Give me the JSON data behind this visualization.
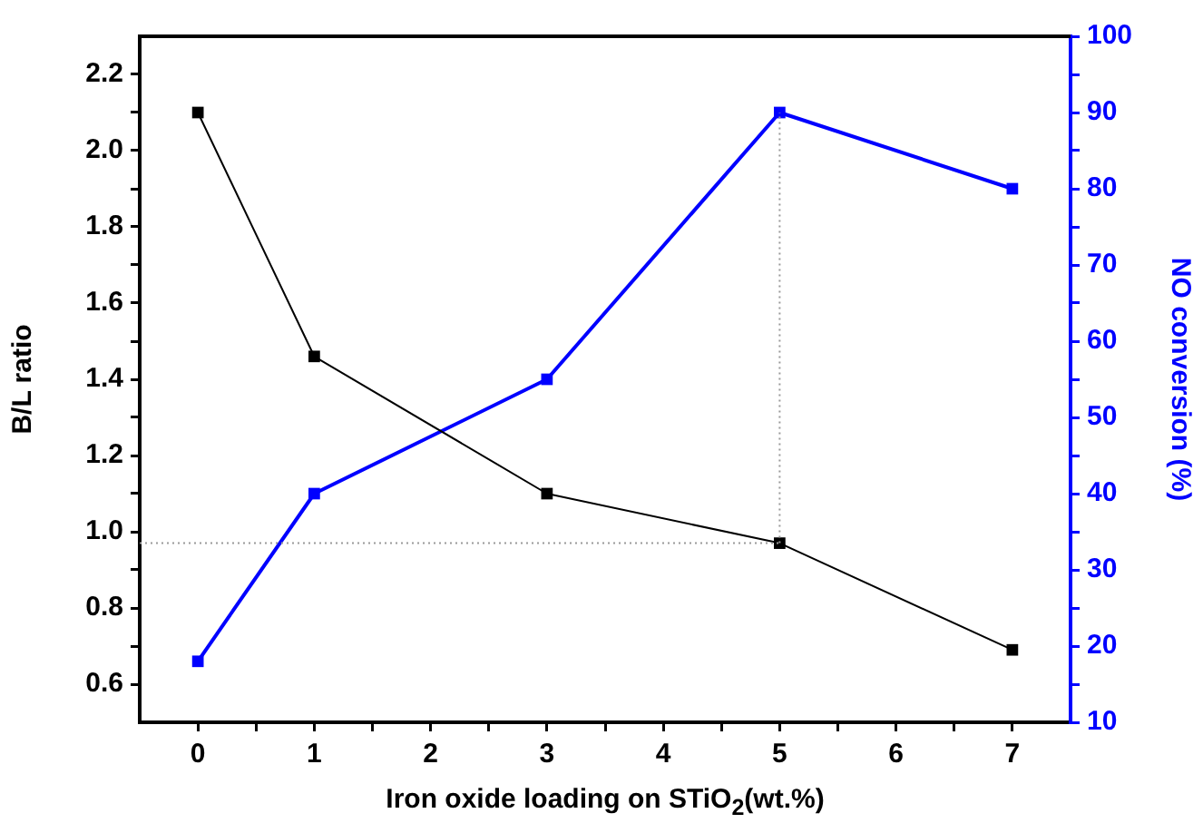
{
  "chart_data": {
    "type": "line",
    "xlabel": "Iron oxide loading on STiO$_{2}$(wt.%)",
    "ylabel": "B/L ratio",
    "y2label": "NO conversion (%)",
    "x": [
      0,
      1,
      3,
      5,
      7
    ],
    "xlim": [
      -0.5,
      7.5
    ],
    "xticks": [
      0,
      {
        "value": 0.5,
        "label": null
      },
      1,
      {
        "value": 1.5,
        "label": null
      },
      2,
      {
        "value": 2.5,
        "label": null
      },
      3,
      {
        "value": 3.5,
        "label": null
      },
      4,
      {
        "value": 4.5,
        "label": null
      },
      5,
      {
        "value": 5.5,
        "label": null
      },
      6,
      {
        "value": 6.5,
        "label": null
      },
      7
    ],
    "ylim": [
      0.5,
      2.3
    ],
    "yticks": [
      0.6,
      {
        "value": 0.7,
        "label": null
      },
      0.8,
      {
        "value": 0.9,
        "label": null
      },
      {
        "value": 1.0,
        "label": "1.0"
      },
      {
        "value": 1.1,
        "label": null
      },
      1.2,
      {
        "value": 1.3,
        "label": null
      },
      1.4,
      {
        "value": 1.5,
        "label": null
      },
      1.6,
      {
        "value": 1.7,
        "label": null
      },
      1.8,
      {
        "value": 1.9,
        "label": null
      },
      {
        "value": 2.0,
        "label": "2.0"
      },
      {
        "value": 2.1,
        "label": null
      },
      2.2
    ],
    "y2lim": [
      10,
      100
    ],
    "y2ticks": [
      10,
      {
        "value": 15,
        "label": null
      },
      20,
      {
        "value": 25,
        "label": null
      },
      30,
      {
        "value": 35,
        "label": null
      },
      40,
      {
        "value": 45,
        "label": null
      },
      50,
      {
        "value": 55,
        "label": null
      },
      60,
      {
        "value": 65,
        "label": null
      },
      70,
      {
        "value": 75,
        "label": null
      },
      80,
      {
        "value": 85,
        "label": null
      },
      90,
      {
        "value": 95,
        "label": null
      },
      100
    ],
    "series": [
      {
        "color": "#000000",
        "values": [
          2.1,
          1.46,
          1.1,
          0.97,
          0.69
        ]
      },
      {
        "color": "#0000ff",
        "axis": "y2",
        "values": [
          18,
          40,
          55,
          90,
          80
        ]
      }
    ],
    "ref_lines": [
      {
        "axis": "y",
        "value": 0.97,
        "color": "#999999",
        "line_style": "dotted"
      },
      {
        "axis": "x",
        "value": 5,
        "color": "#999999",
        "line_style": "dotted"
      }
    ],
    "grid": false,
    "legend": false,
    "marker": "square",
    "line_style": "solid"
  }
}
